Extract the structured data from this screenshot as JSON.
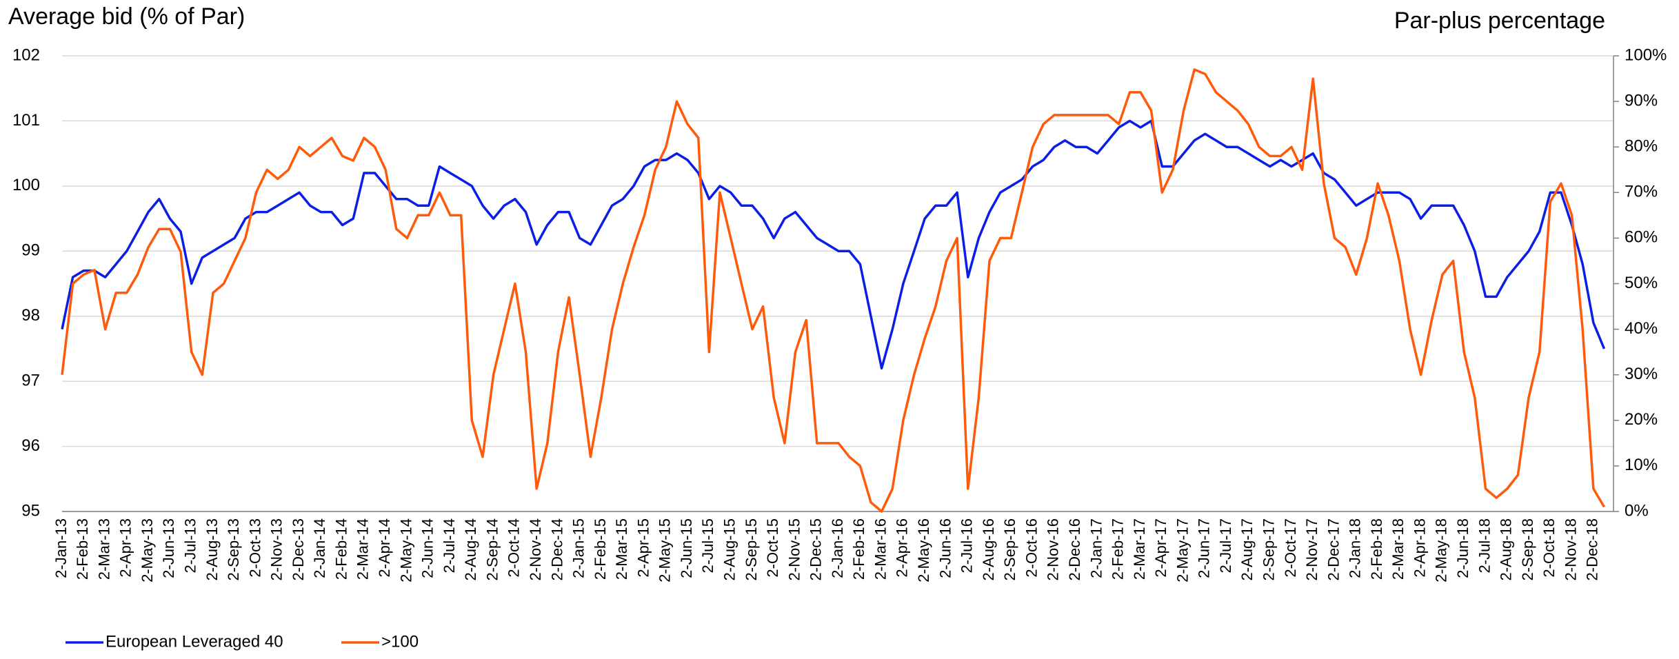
{
  "chart_data": {
    "type": "line",
    "title": "Average bid (% of Par)",
    "y2_title": "Par-plus percentage",
    "categories": [
      "2-Jan-13",
      null,
      "2-Feb-13",
      null,
      "2-Mar-13",
      null,
      "2-Apr-13",
      null,
      "2-May-13",
      null,
      "2-Jun-13",
      null,
      "2-Jul-13",
      null,
      "2-Aug-13",
      null,
      "2-Sep-13",
      null,
      "2-Oct-13",
      null,
      "2-Nov-13",
      null,
      "2-Dec-13",
      null,
      "2-Jan-14",
      null,
      "2-Feb-14",
      null,
      "2-Mar-14",
      null,
      "2-Apr-14",
      null,
      "2-May-14",
      null,
      "2-Jun-14",
      null,
      "2-Jul-14",
      null,
      "2-Aug-14",
      null,
      "2-Sep-14",
      null,
      "2-Oct-14",
      null,
      "2-Nov-14",
      null,
      "2-Dec-14",
      null,
      "2-Jan-15",
      null,
      "2-Feb-15",
      null,
      "2-Mar-15",
      null,
      "2-Apr-15",
      null,
      "2-May-15",
      null,
      "2-Jun-15",
      null,
      "2-Jul-15",
      null,
      "2-Aug-15",
      null,
      "2-Sep-15",
      null,
      "2-Oct-15",
      null,
      "2-Nov-15",
      null,
      "2-Dec-15",
      null,
      "2-Jan-16",
      null,
      "2-Feb-16",
      null,
      "2-Mar-16",
      null,
      "2-Apr-16",
      null,
      "2-May-16",
      null,
      "2-Jun-16",
      null,
      "2-Jul-16",
      null,
      "2-Aug-16",
      null,
      "2-Sep-16",
      null,
      "2-Oct-16",
      null,
      "2-Nov-16",
      null,
      "2-Dec-16",
      null,
      "2-Jan-17",
      null,
      "2-Feb-17",
      null,
      "2-Mar-17",
      null,
      "2-Apr-17",
      null,
      "2-May-17",
      null,
      "2-Jun-17",
      null,
      "2-Jul-17",
      null,
      "2-Aug-17",
      null,
      "2-Sep-17",
      null,
      "2-Oct-17",
      null,
      "2-Nov-17",
      null,
      "2-Dec-17",
      null,
      "2-Jan-18",
      null,
      "2-Feb-18",
      null,
      "2-Mar-18",
      null,
      "2-Apr-18",
      null,
      "2-May-18",
      null,
      "2-Jun-18",
      null,
      "2-Jul-18",
      null,
      "2-Aug-18",
      null,
      "2-Sep-18",
      null,
      "2-Oct-18",
      null,
      "2-Nov-18",
      null,
      "2-Dec-18",
      null
    ],
    "series": [
      {
        "name": "European Leveraged 40",
        "color": "#0a1ee6",
        "axis": "y",
        "values": [
          97.8,
          98.6,
          98.7,
          98.7,
          98.6,
          98.8,
          99.0,
          99.3,
          99.6,
          99.8,
          99.5,
          99.3,
          98.5,
          98.9,
          99.0,
          99.1,
          99.2,
          99.5,
          99.6,
          99.6,
          99.7,
          99.8,
          99.9,
          99.7,
          99.6,
          99.6,
          99.4,
          99.5,
          100.2,
          100.2,
          100.0,
          99.8,
          99.8,
          99.7,
          99.7,
          100.3,
          100.2,
          100.1,
          100.0,
          99.7,
          99.5,
          99.7,
          99.8,
          99.6,
          99.1,
          99.4,
          99.6,
          99.6,
          99.2,
          99.1,
          99.4,
          99.7,
          99.8,
          100.0,
          100.3,
          100.4,
          100.4,
          100.5,
          100.4,
          100.2,
          99.8,
          100.0,
          99.9,
          99.7,
          99.7,
          99.5,
          99.2,
          99.5,
          99.6,
          99.4,
          99.2,
          99.1,
          99.0,
          99.0,
          98.8,
          98.0,
          97.2,
          97.8,
          98.5,
          99.0,
          99.5,
          99.7,
          99.7,
          99.9,
          98.6,
          99.2,
          99.6,
          99.9,
          100.0,
          100.1,
          100.3,
          100.4,
          100.6,
          100.7,
          100.6,
          100.6,
          100.5,
          100.7,
          100.9,
          101.0,
          100.9,
          101.0,
          100.3,
          100.3,
          100.5,
          100.7,
          100.8,
          100.7,
          100.6,
          100.6,
          100.5,
          100.4,
          100.3,
          100.4,
          100.3,
          100.4,
          100.5,
          100.2,
          100.1,
          99.9,
          99.7,
          99.8,
          99.9,
          99.9,
          99.9,
          99.8,
          99.5,
          99.7,
          99.7,
          99.7,
          99.4,
          99.0,
          98.3,
          98.3,
          98.6,
          98.8,
          99.0,
          99.3,
          99.9,
          99.9,
          99.4,
          98.8,
          97.9,
          97.5
        ]
      },
      {
        "name": ">100",
        "color": "#ff5a0a",
        "axis": "y2",
        "values": [
          30,
          50,
          52,
          53,
          40,
          48,
          48,
          52,
          58,
          62,
          62,
          57,
          35,
          30,
          48,
          50,
          55,
          60,
          70,
          75,
          73,
          75,
          80,
          78,
          80,
          82,
          78,
          77,
          82,
          80,
          75,
          62,
          60,
          65,
          65,
          70,
          65,
          65,
          20,
          12,
          30,
          40,
          50,
          35,
          5,
          15,
          35,
          47,
          30,
          12,
          25,
          40,
          50,
          58,
          65,
          75,
          80,
          90,
          85,
          82,
          35,
          70,
          60,
          50,
          40,
          45,
          25,
          15,
          35,
          42,
          15,
          15,
          15,
          12,
          10,
          2,
          0,
          5,
          20,
          30,
          38,
          45,
          55,
          60,
          5,
          25,
          55,
          60,
          60,
          70,
          80,
          85,
          87,
          87,
          87,
          87,
          87,
          87,
          85,
          92,
          92,
          88,
          70,
          75,
          88,
          97,
          96,
          92,
          90,
          88,
          85,
          80,
          78,
          78,
          80,
          75,
          95,
          72,
          60,
          58,
          52,
          60,
          72,
          65,
          55,
          40,
          30,
          42,
          52,
          55,
          35,
          25,
          5,
          3,
          5,
          8,
          25,
          35,
          68,
          72,
          65,
          40,
          5,
          1
        ]
      }
    ],
    "ylim": [
      95,
      102
    ],
    "yticks": [
      95,
      96,
      97,
      98,
      99,
      100,
      101,
      102
    ],
    "y2lim": [
      0,
      100
    ],
    "y2ticks": [
      {
        "value": 0,
        "label": "0%"
      },
      {
        "value": 10,
        "label": "10%"
      },
      {
        "value": 20,
        "label": "20%"
      },
      {
        "value": 30,
        "label": "30%"
      },
      {
        "value": 40,
        "label": "40%"
      },
      {
        "value": 50,
        "label": "50%"
      },
      {
        "value": 60,
        "label": "60%"
      },
      {
        "value": 70,
        "label": "70%"
      },
      {
        "value": 80,
        "label": "80%"
      },
      {
        "value": 90,
        "label": "90%"
      },
      {
        "value": 100,
        "label": "100%"
      }
    ],
    "grid": true,
    "legend": "bottom-left"
  }
}
